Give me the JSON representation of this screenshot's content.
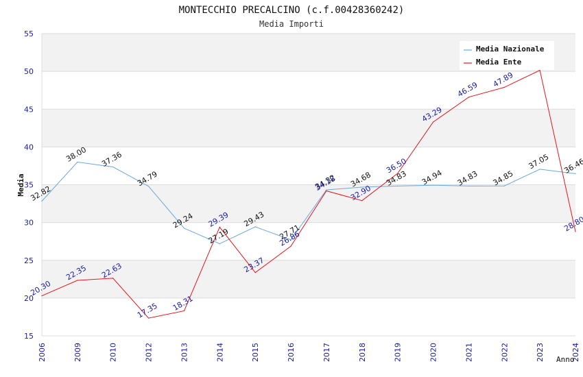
{
  "chart_data": {
    "type": "line",
    "title": "MONTECCHIO PRECALCINO (c.f.00428360242)",
    "subtitle": "Media Importi",
    "xlabel": "Anno",
    "ylabel": "Media",
    "categories": [
      "2006",
      "2009",
      "2010",
      "2012",
      "2013",
      "2014",
      "2015",
      "2016",
      "2017",
      "2018",
      "2019",
      "2020",
      "2021",
      "2022",
      "2023",
      "2024"
    ],
    "ylim": [
      15,
      55
    ],
    "yticks": [
      15,
      20,
      25,
      30,
      35,
      40,
      45,
      50,
      55
    ],
    "grid": true,
    "band_colors": [
      "#f2f2f2",
      "#ffffff"
    ],
    "legend_position": "top-right",
    "series": [
      {
        "name": "Media Nazionale",
        "color": "#6aa8e0",
        "label_color": "#111111",
        "values": [
          32.82,
          38.0,
          37.36,
          34.79,
          29.24,
          27.19,
          29.43,
          27.71,
          34.32,
          34.68,
          34.83,
          34.94,
          34.83,
          34.85,
          37.05,
          36.46
        ]
      },
      {
        "name": "Media Ente",
        "color": "#e8141c",
        "label_color": "#1a1aa6",
        "values": [
          20.3,
          22.35,
          22.63,
          17.35,
          18.31,
          29.39,
          23.37,
          26.86,
          34.18,
          32.9,
          36.5,
          43.29,
          46.59,
          47.89,
          50.15,
          28.8
        ],
        "labels": [
          "20.30",
          "22.35",
          "22.63",
          "17.35",
          "18.31",
          "29.39",
          "23.37",
          "26.86",
          "34.18",
          "32.90",
          "36.50",
          "43.29",
          "46.59",
          "47.89",
          "",
          "28.80"
        ]
      }
    ]
  }
}
